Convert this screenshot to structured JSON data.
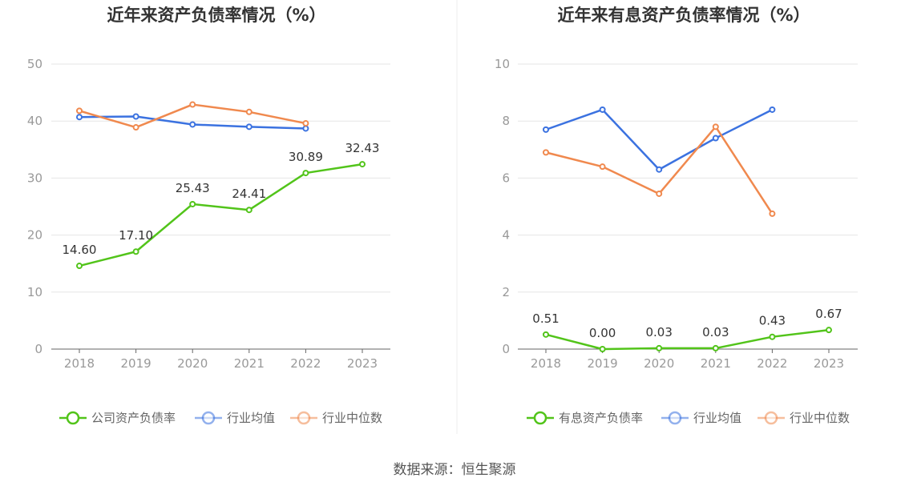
{
  "footer": {
    "source": "数据来源：恒生聚源"
  },
  "chart_data": [
    {
      "type": "line",
      "title": "近年来资产负债率情况（%）",
      "categories": [
        "2018",
        "2019",
        "2020",
        "2021",
        "2022",
        "2023"
      ],
      "ylim": [
        0,
        50
      ],
      "yticks": [
        0,
        10,
        20,
        30,
        40,
        50
      ],
      "grid": true,
      "legend_position": "bottom",
      "series": [
        {
          "name": "公司资产负债率",
          "color": "#52c41a",
          "values": [
            14.6,
            17.1,
            25.43,
            24.41,
            30.89,
            32.43
          ],
          "labels": [
            "14.60",
            "17.10",
            "25.43",
            "24.41",
            "30.89",
            "32.43"
          ]
        },
        {
          "name": "行业均值",
          "color": "#3b72e0",
          "values": [
            40.7,
            40.8,
            39.4,
            39.0,
            38.7,
            null
          ]
        },
        {
          "name": "行业中位数",
          "color": "#f0894e",
          "values": [
            41.8,
            38.9,
            42.9,
            41.6,
            39.6,
            null
          ]
        }
      ]
    },
    {
      "type": "line",
      "title": "近年来有息资产负债率情况（%）",
      "categories": [
        "2018",
        "2019",
        "2020",
        "2021",
        "2022",
        "2023"
      ],
      "ylim": [
        0,
        10
      ],
      "yticks": [
        0,
        2,
        4,
        6,
        8,
        10
      ],
      "grid": true,
      "legend_position": "bottom",
      "series": [
        {
          "name": "有息资产负债率",
          "color": "#52c41a",
          "values": [
            0.51,
            0.0,
            0.03,
            0.03,
            0.43,
            0.67
          ],
          "labels": [
            "0.51",
            "0.00",
            "0.03",
            "0.03",
            "0.43",
            "0.67"
          ]
        },
        {
          "name": "行业均值",
          "color": "#3b72e0",
          "values": [
            7.7,
            8.4,
            6.3,
            7.4,
            8.4,
            null
          ]
        },
        {
          "name": "行业中位数",
          "color": "#f0894e",
          "values": [
            6.9,
            6.4,
            5.45,
            7.8,
            4.75,
            null
          ]
        }
      ]
    }
  ]
}
